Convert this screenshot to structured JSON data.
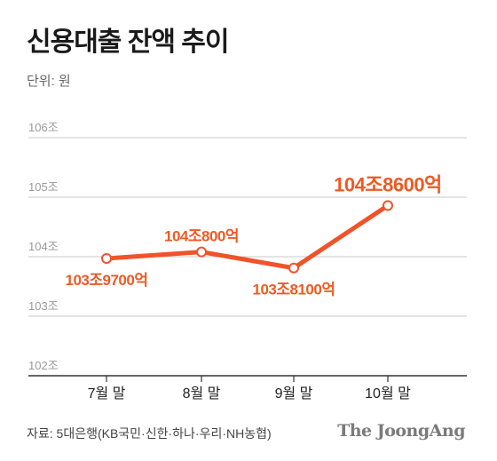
{
  "title": "신용대출 잔액 추이",
  "unit_label": "단위: 원",
  "source": "자료: 5대은행(KB국민·신한·하나·우리·NH농협)",
  "brand": "The JoongAng",
  "colors": {
    "line": "#f0532a",
    "label": "#ee5a24",
    "grid": "#c8c8c8",
    "tick": "#999999"
  },
  "chart_data": {
    "type": "line",
    "categories": [
      "7월 말",
      "8월 말",
      "9월 말",
      "10월 말"
    ],
    "y_tick_labels": [
      "102조",
      "103조",
      "104조",
      "105조",
      "106조"
    ],
    "y_ticks": [
      102,
      103,
      104,
      105,
      106
    ],
    "ylim": [
      102,
      106
    ],
    "series": [
      {
        "values": [
          103.97,
          104.08,
          103.81,
          104.86
        ],
        "labels": [
          "103조9700억",
          "104조800억",
          "103조8100억",
          "104조8600억"
        ]
      }
    ],
    "grid": true
  }
}
